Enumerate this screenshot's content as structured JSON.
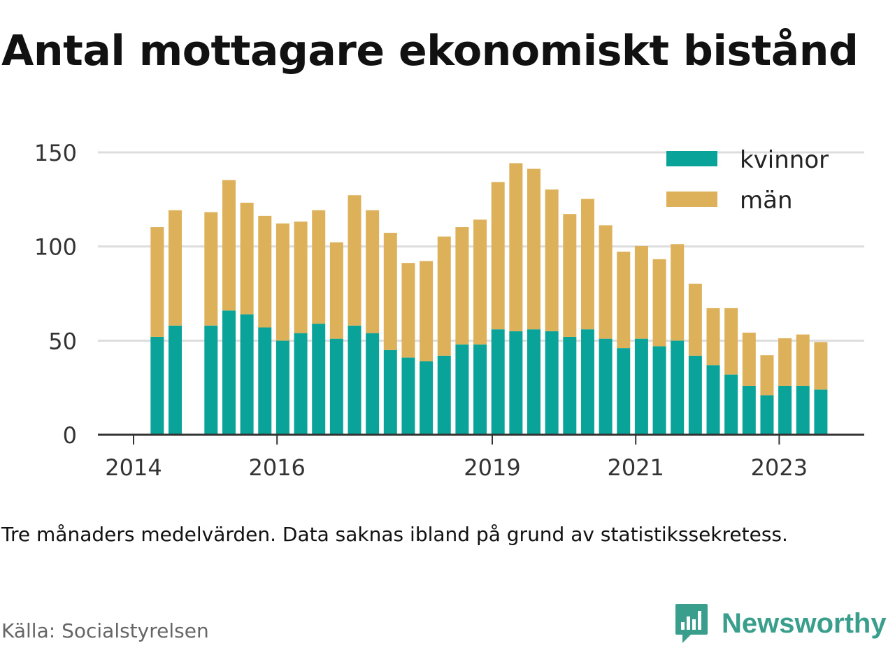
{
  "title": "Antal mottagare ekonomiskt bistånd",
  "note": "Tre månaders medelvärden. Data saknas ibland på grund av statistikssekretess.",
  "source": "Källa: Socialstyrelsen",
  "brand": {
    "name": "Newsworthy",
    "color": "#3a9e8c"
  },
  "colors": {
    "kvinnor": "#0aa39a",
    "man": "#ddb05a",
    "grid": "#dddddd",
    "axis": "#333333"
  },
  "chart_data": {
    "type": "bar",
    "stacked": true,
    "ylim": [
      0,
      150
    ],
    "yticks": [
      0,
      50,
      100,
      150
    ],
    "xticks": [
      {
        "label": "2014",
        "x": 2014.0
      },
      {
        "label": "2016",
        "x": 2016.0
      },
      {
        "label": "2019",
        "x": 2019.0
      },
      {
        "label": "2021",
        "x": 2021.0
      },
      {
        "label": "2023",
        "x": 2023.0
      }
    ],
    "x": [
      2014.33,
      2014.58,
      2015.08,
      2015.33,
      2015.58,
      2015.83,
      2016.08,
      2016.33,
      2016.58,
      2016.83,
      2017.08,
      2017.33,
      2017.58,
      2017.83,
      2018.08,
      2018.33,
      2018.58,
      2018.83,
      2019.08,
      2019.33,
      2019.58,
      2019.83,
      2020.08,
      2020.33,
      2020.58,
      2020.83,
      2021.08,
      2021.33,
      2021.58,
      2021.83,
      2022.08,
      2022.33,
      2022.58,
      2022.83,
      2023.08,
      2023.33,
      2023.58
    ],
    "legend_position": "top-right",
    "series": [
      {
        "name": "kvinnor",
        "values": [
          52,
          58,
          58,
          66,
          64,
          57,
          50,
          54,
          59,
          51,
          58,
          54,
          45,
          41,
          39,
          42,
          48,
          48,
          56,
          55,
          56,
          55,
          52,
          56,
          51,
          46,
          51,
          47,
          50,
          42,
          37,
          32,
          26,
          21,
          26,
          26,
          24
        ]
      },
      {
        "name": "män",
        "values": [
          59,
          62,
          61,
          70,
          60,
          60,
          63,
          60,
          61,
          52,
          70,
          66,
          63,
          51,
          54,
          64,
          63,
          67,
          79,
          90,
          86,
          76,
          66,
          70,
          61,
          52,
          50,
          47,
          52,
          39,
          31,
          36,
          29,
          22,
          26,
          28,
          26
        ]
      }
    ]
  }
}
